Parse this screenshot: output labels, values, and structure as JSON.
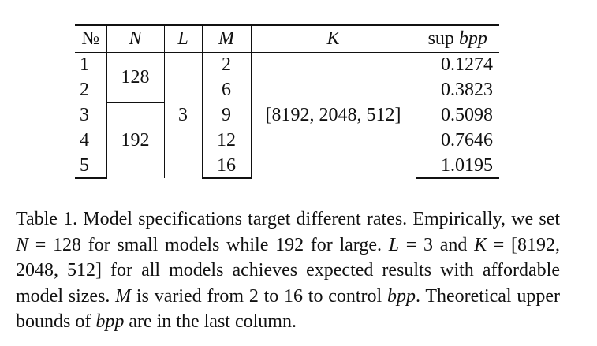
{
  "table": {
    "headers": {
      "no": "№",
      "n": "N",
      "l": "L",
      "m": "M",
      "k": "K",
      "bpp_prefix": "sup ",
      "bpp_var": "bpp"
    },
    "rows": [
      {
        "no": "1",
        "m": "2",
        "bpp": "0.1274"
      },
      {
        "no": "2",
        "m": "6",
        "bpp": "0.3823"
      },
      {
        "no": "3",
        "m": "9",
        "bpp": "0.5098"
      },
      {
        "no": "4",
        "m": "12",
        "bpp": "0.7646"
      },
      {
        "no": "5",
        "m": "16",
        "bpp": "1.0195"
      }
    ],
    "n_groups": [
      "128",
      "192"
    ],
    "l_value": "3",
    "k_value": "[8192, 2048, 512]"
  },
  "caption": {
    "s1": "Table 1. Model specifications target different rates. Empirically, we set ",
    "v1": "N",
    "s2": " = 128 for small models while 192 for large. ",
    "v2": "L",
    "s3": " = 3 and ",
    "v3": "K",
    "s4": " = [8192, 2048, 512] for all models achieves expected results with affordable model sizes. ",
    "v4": "M",
    "s5": " is varied from 2 to 16 to control ",
    "v5": "bpp",
    "s6": ". Theoretical upper bounds of ",
    "v6": "bpp",
    "s7": " are in the last column."
  }
}
